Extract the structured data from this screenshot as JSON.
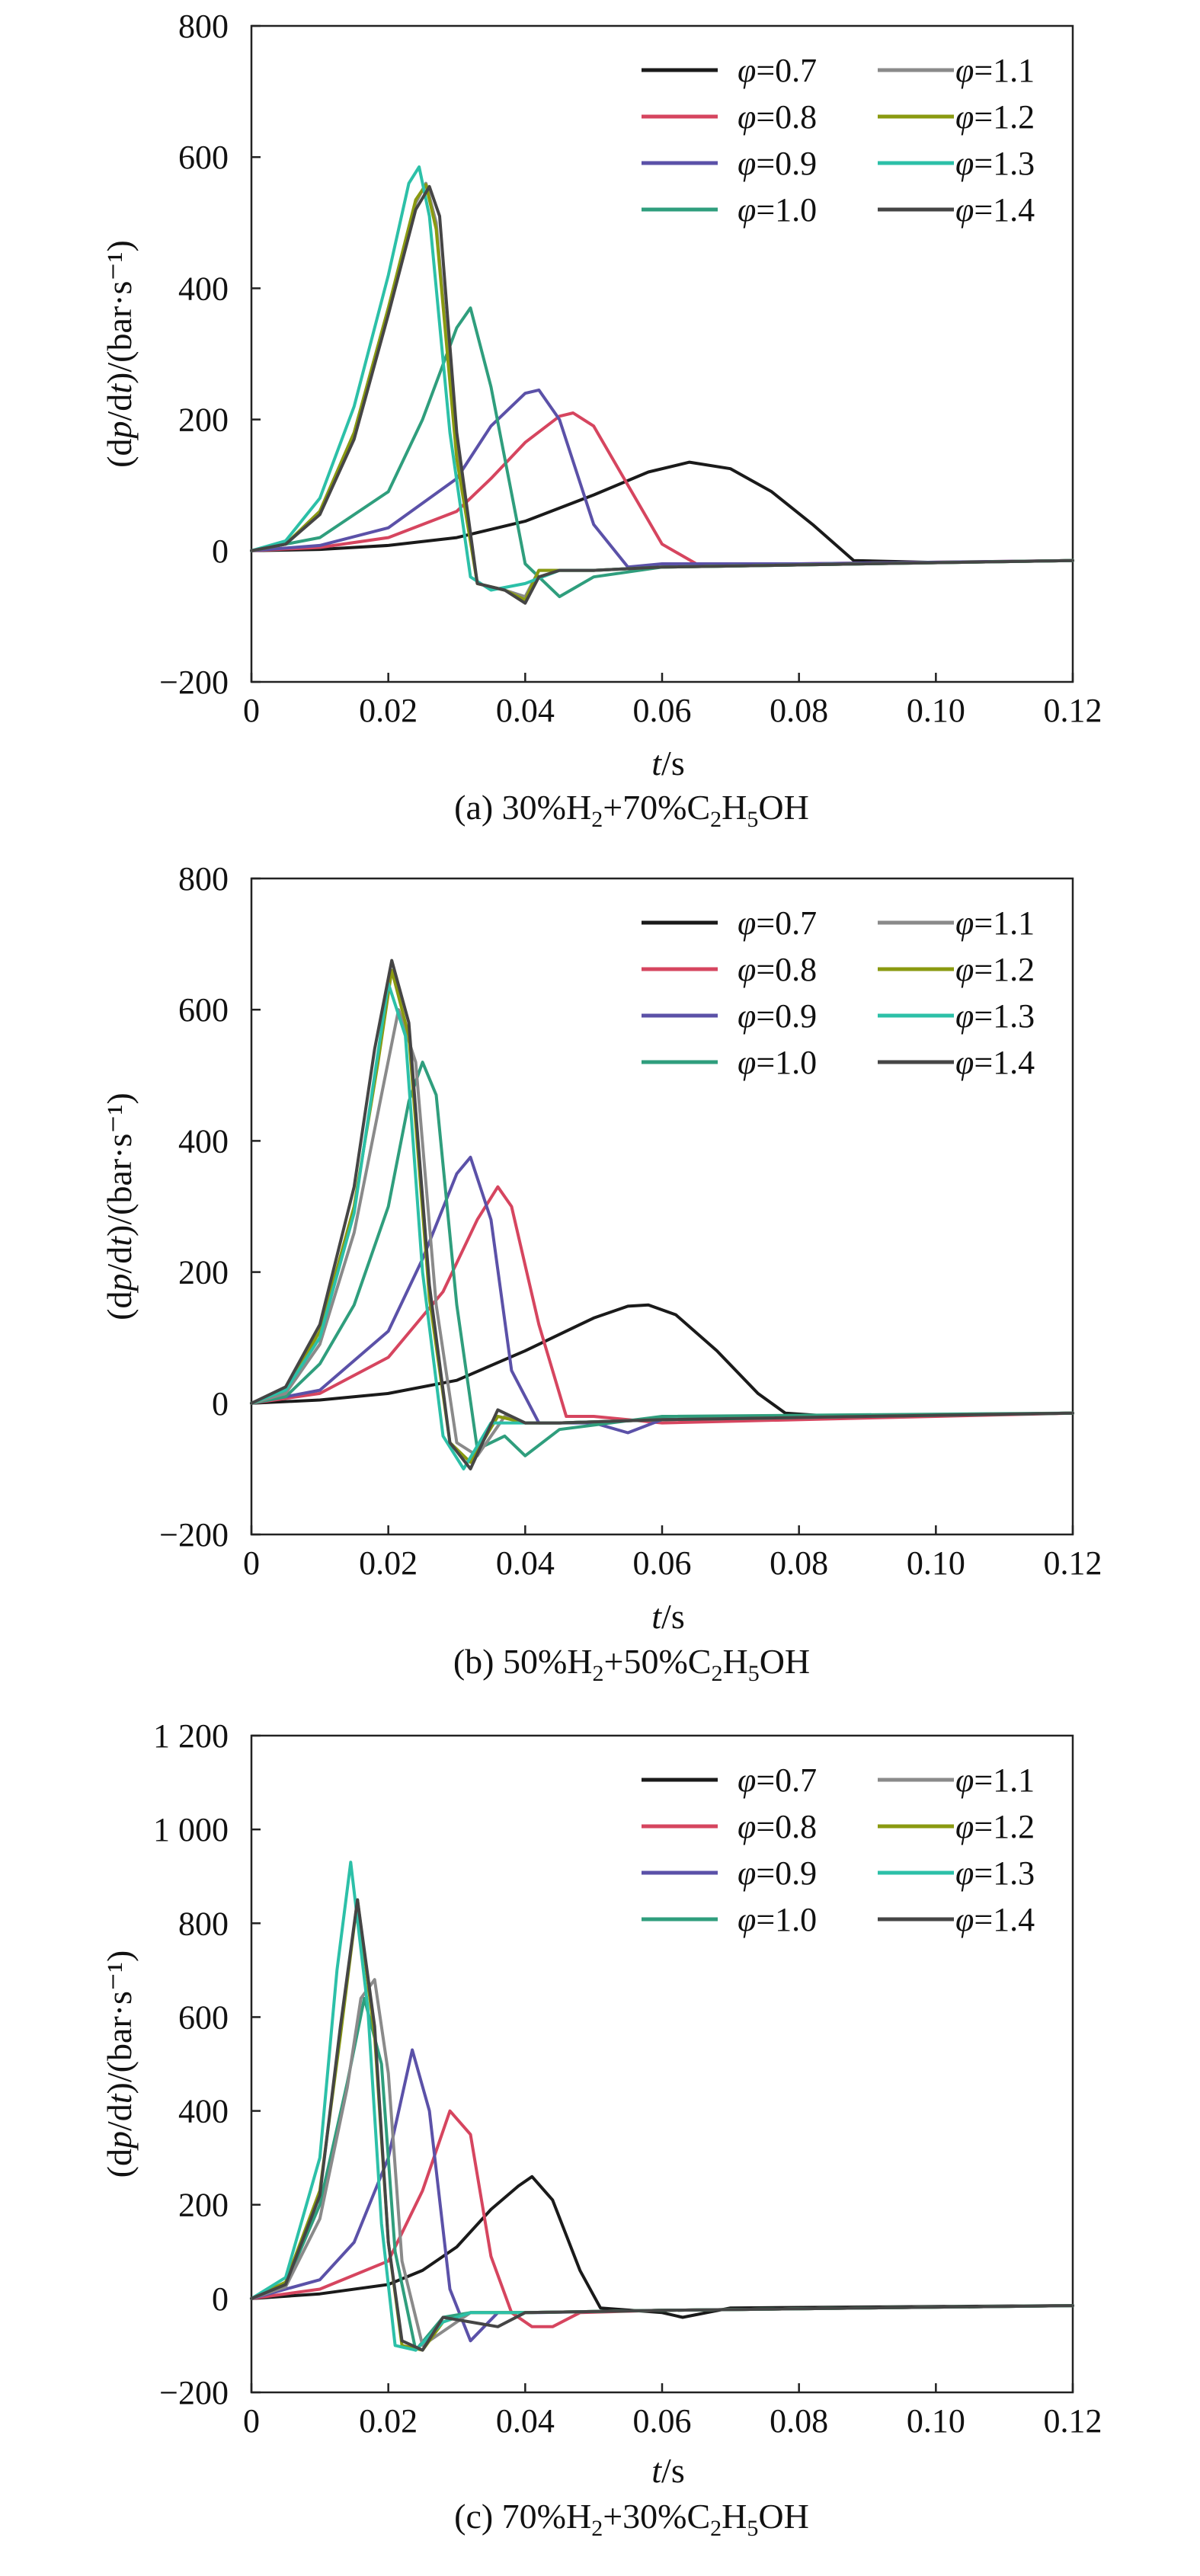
{
  "chart_data": [
    {
      "type": "line",
      "panel_label": "(a)",
      "caption_parts": [
        "(a) 30%H",
        "2",
        "+70%C",
        "2",
        "H",
        "5",
        "OH"
      ],
      "xlabel": "t/s",
      "ylabel": "(dp/dt)/(bar·s⁻¹)",
      "xlim": [
        0,
        0.12
      ],
      "ylim": [
        -200,
        800
      ],
      "xticks": [
        0,
        0.02,
        0.04,
        0.06,
        0.08,
        0.1,
        0.12
      ],
      "xtick_labels": [
        "0",
        "0.02",
        "0.04",
        "0.06",
        "0.08",
        "0.10",
        "0.12"
      ],
      "yticks": [
        -200,
        0,
        200,
        400,
        600,
        800
      ],
      "ytick_labels": [
        "−200",
        "0",
        "200",
        "400",
        "600",
        "800"
      ],
      "grid": false,
      "legend_position": "top-right",
      "series": [
        {
          "name": "φ=0.7",
          "color": "#1a1a1a",
          "x": [
            0,
            0.01,
            0.02,
            0.03,
            0.04,
            0.05,
            0.058,
            0.064,
            0.07,
            0.076,
            0.082,
            0.088,
            0.1,
            0.12
          ],
          "y": [
            0,
            2,
            8,
            20,
            45,
            85,
            120,
            135,
            125,
            90,
            40,
            -15,
            -18,
            -15
          ]
        },
        {
          "name": "φ=0.8",
          "color": "#d6455f",
          "x": [
            0,
            0.01,
            0.02,
            0.03,
            0.035,
            0.04,
            0.045,
            0.047,
            0.05,
            0.055,
            0.06,
            0.065,
            0.08,
            0.12
          ],
          "y": [
            0,
            5,
            20,
            60,
            110,
            165,
            205,
            210,
            190,
            100,
            10,
            -20,
            -20,
            -15
          ]
        },
        {
          "name": "φ=0.9",
          "color": "#5b51a8",
          "x": [
            0,
            0.01,
            0.02,
            0.03,
            0.035,
            0.04,
            0.042,
            0.045,
            0.05,
            0.055,
            0.06,
            0.08,
            0.12
          ],
          "y": [
            0,
            8,
            35,
            110,
            190,
            240,
            245,
            200,
            40,
            -25,
            -20,
            -20,
            -15
          ]
        },
        {
          "name": "φ=1.0",
          "color": "#2f9e7d",
          "x": [
            0,
            0.01,
            0.02,
            0.025,
            0.03,
            0.032,
            0.035,
            0.04,
            0.045,
            0.05,
            0.06,
            0.12
          ],
          "y": [
            0,
            20,
            90,
            200,
            340,
            370,
            250,
            -20,
            -70,
            -40,
            -25,
            -15
          ]
        },
        {
          "name": "φ=1.1",
          "color": "#8a8a8a",
          "x": [
            0,
            0.005,
            0.01,
            0.015,
            0.02,
            0.024,
            0.0255,
            0.027,
            0.03,
            0.033,
            0.037,
            0.04,
            0.042,
            0.045,
            0.05,
            0.06,
            0.12
          ],
          "y": [
            0,
            10,
            60,
            180,
            370,
            530,
            560,
            500,
            150,
            -50,
            -60,
            -70,
            -30,
            -30,
            -30,
            -25,
            -15
          ]
        },
        {
          "name": "φ=1.2",
          "color": "#8a9a10",
          "x": [
            0,
            0.005,
            0.01,
            0.015,
            0.02,
            0.024,
            0.0255,
            0.027,
            0.03,
            0.033,
            0.037,
            0.04,
            0.042,
            0.045,
            0.05,
            0.06,
            0.12
          ],
          "y": [
            0,
            10,
            60,
            180,
            370,
            535,
            558,
            490,
            140,
            -50,
            -60,
            -75,
            -30,
            -30,
            -30,
            -25,
            -15
          ]
        },
        {
          "name": "φ=1.3",
          "color": "#2cc0a8",
          "x": [
            0,
            0.005,
            0.01,
            0.015,
            0.02,
            0.023,
            0.0245,
            0.026,
            0.029,
            0.032,
            0.035,
            0.04,
            0.045,
            0.05,
            0.06,
            0.12
          ],
          "y": [
            0,
            15,
            80,
            220,
            420,
            560,
            585,
            510,
            180,
            -40,
            -60,
            -50,
            -30,
            -30,
            -25,
            -15
          ]
        },
        {
          "name": "φ=1.4",
          "color": "#454545",
          "x": [
            0,
            0.005,
            0.01,
            0.015,
            0.02,
            0.024,
            0.026,
            0.0275,
            0.03,
            0.033,
            0.037,
            0.04,
            0.042,
            0.045,
            0.05,
            0.06,
            0.12
          ],
          "y": [
            0,
            10,
            55,
            170,
            360,
            520,
            555,
            510,
            180,
            -50,
            -60,
            -80,
            -40,
            -30,
            -30,
            -25,
            -15
          ]
        }
      ]
    },
    {
      "type": "line",
      "panel_label": "(b)",
      "caption_parts": [
        "(b) 50%H",
        "2",
        "+50%C",
        "2",
        "H",
        "5",
        "OH"
      ],
      "xlabel": "t/s",
      "ylabel": "(dp/dt)/(bar·s⁻¹)",
      "xlim": [
        0,
        0.12
      ],
      "ylim": [
        -200,
        800
      ],
      "xticks": [
        0,
        0.02,
        0.04,
        0.06,
        0.08,
        0.1,
        0.12
      ],
      "xtick_labels": [
        "0",
        "0.02",
        "0.04",
        "0.06",
        "0.08",
        "0.10",
        "0.12"
      ],
      "yticks": [
        -200,
        0,
        200,
        400,
        600,
        800
      ],
      "ytick_labels": [
        "−200",
        "0",
        "200",
        "400",
        "600",
        "800"
      ],
      "grid": false,
      "legend_position": "top-right",
      "series": [
        {
          "name": "φ=0.7",
          "color": "#1a1a1a",
          "x": [
            0,
            0.01,
            0.02,
            0.03,
            0.04,
            0.05,
            0.055,
            0.058,
            0.062,
            0.068,
            0.074,
            0.078,
            0.085,
            0.12
          ],
          "y": [
            0,
            5,
            15,
            35,
            80,
            130,
            148,
            150,
            135,
            80,
            15,
            -15,
            -20,
            -15
          ]
        },
        {
          "name": "φ=0.8",
          "color": "#d6455f",
          "x": [
            0,
            0.01,
            0.02,
            0.028,
            0.033,
            0.036,
            0.038,
            0.042,
            0.046,
            0.05,
            0.06,
            0.12
          ],
          "y": [
            0,
            15,
            70,
            170,
            280,
            330,
            300,
            120,
            -20,
            -20,
            -30,
            -15
          ]
        },
        {
          "name": "φ=0.9",
          "color": "#5b51a8",
          "x": [
            0,
            0.01,
            0.02,
            0.025,
            0.03,
            0.032,
            0.035,
            0.038,
            0.042,
            0.05,
            0.055,
            0.06,
            0.12
          ],
          "y": [
            0,
            20,
            110,
            220,
            350,
            375,
            280,
            50,
            -30,
            -30,
            -45,
            -25,
            -15
          ]
        },
        {
          "name": "φ=1.0",
          "color": "#2f9e7d",
          "x": [
            0,
            0.005,
            0.01,
            0.015,
            0.02,
            0.023,
            0.025,
            0.027,
            0.03,
            0.033,
            0.037,
            0.04,
            0.045,
            0.06,
            0.12
          ],
          "y": [
            0,
            10,
            60,
            150,
            300,
            460,
            520,
            470,
            150,
            -70,
            -50,
            -80,
            -40,
            -20,
            -15
          ]
        },
        {
          "name": "φ=1.1",
          "color": "#8a8a8a",
          "x": [
            0,
            0.005,
            0.01,
            0.015,
            0.019,
            0.0215,
            0.024,
            0.027,
            0.03,
            0.033,
            0.037,
            0.04,
            0.045,
            0.06,
            0.12
          ],
          "y": [
            0,
            15,
            90,
            260,
            470,
            600,
            520,
            150,
            -60,
            -80,
            -20,
            -30,
            -30,
            -25,
            -15
          ]
        },
        {
          "name": "φ=1.2",
          "color": "#8a9a10",
          "x": [
            0,
            0.005,
            0.01,
            0.015,
            0.0185,
            0.0205,
            0.023,
            0.026,
            0.029,
            0.032,
            0.036,
            0.04,
            0.045,
            0.06,
            0.12
          ],
          "y": [
            0,
            20,
            110,
            300,
            520,
            660,
            560,
            160,
            -60,
            -90,
            -20,
            -30,
            -30,
            -25,
            -15
          ]
        },
        {
          "name": "φ=1.3",
          "color": "#2cc0a8",
          "x": [
            0,
            0.005,
            0.01,
            0.015,
            0.018,
            0.02,
            0.0225,
            0.025,
            0.028,
            0.031,
            0.035,
            0.04,
            0.045,
            0.06,
            0.12
          ],
          "y": [
            0,
            20,
            100,
            290,
            500,
            640,
            560,
            200,
            -50,
            -100,
            -30,
            -30,
            -30,
            -25,
            -15
          ]
        },
        {
          "name": "φ=1.4",
          "color": "#454545",
          "x": [
            0,
            0.005,
            0.01,
            0.015,
            0.018,
            0.0205,
            0.023,
            0.026,
            0.029,
            0.032,
            0.036,
            0.04,
            0.045,
            0.06,
            0.12
          ],
          "y": [
            0,
            25,
            120,
            330,
            540,
            675,
            580,
            180,
            -60,
            -100,
            -10,
            -30,
            -30,
            -25,
            -15
          ]
        }
      ]
    },
    {
      "type": "line",
      "panel_label": "(c)",
      "caption_parts": [
        "(c) 70%H",
        "2",
        "+30%C",
        "2",
        "H",
        "5",
        "OH"
      ],
      "xlabel": "t/s",
      "ylabel": "(dp/dt)/(bar·s⁻¹)",
      "xlim": [
        0,
        0.12
      ],
      "ylim": [
        -200,
        1200
      ],
      "xticks": [
        0,
        0.02,
        0.04,
        0.06,
        0.08,
        0.1,
        0.12
      ],
      "xtick_labels": [
        "0",
        "0.02",
        "0.04",
        "0.06",
        "0.08",
        "0.10",
        "0.12"
      ],
      "yticks": [
        -200,
        0,
        200,
        400,
        600,
        800,
        1000,
        1200
      ],
      "ytick_labels": [
        "−200",
        "0",
        "200",
        "400",
        "600",
        "800",
        "1 000",
        "1 200"
      ],
      "grid": false,
      "legend_position": "top-right",
      "series": [
        {
          "name": "φ=0.7",
          "color": "#1a1a1a",
          "x": [
            0,
            0.01,
            0.02,
            0.025,
            0.03,
            0.035,
            0.039,
            0.041,
            0.044,
            0.048,
            0.051,
            0.06,
            0.063,
            0.07,
            0.12
          ],
          "y": [
            0,
            10,
            30,
            60,
            110,
            190,
            240,
            260,
            210,
            60,
            -20,
            -30,
            -40,
            -20,
            -15
          ]
        },
        {
          "name": "φ=0.8",
          "color": "#d6455f",
          "x": [
            0,
            0.01,
            0.02,
            0.025,
            0.029,
            0.032,
            0.035,
            0.038,
            0.041,
            0.044,
            0.048,
            0.06,
            0.12
          ],
          "y": [
            0,
            20,
            80,
            230,
            400,
            350,
            90,
            -30,
            -60,
            -60,
            -30,
            -25,
            -15
          ]
        },
        {
          "name": "φ=0.9",
          "color": "#5b51a8",
          "x": [
            0,
            0.01,
            0.015,
            0.02,
            0.0235,
            0.026,
            0.029,
            0.032,
            0.036,
            0.042,
            0.06,
            0.12
          ],
          "y": [
            0,
            40,
            120,
            300,
            530,
            400,
            20,
            -90,
            -30,
            -30,
            -25,
            -15
          ]
        },
        {
          "name": "φ=1.0",
          "color": "#2f9e7d",
          "x": [
            0,
            0.005,
            0.01,
            0.014,
            0.0165,
            0.019,
            0.021,
            0.024,
            0.028,
            0.032,
            0.04,
            0.06,
            0.12
          ],
          "y": [
            0,
            30,
            200,
            460,
            640,
            500,
            100,
            -110,
            -40,
            -30,
            -30,
            -25,
            -15
          ]
        },
        {
          "name": "φ=1.1",
          "color": "#8a8a8a",
          "x": [
            0,
            0.005,
            0.01,
            0.014,
            0.016,
            0.018,
            0.02,
            0.022,
            0.025,
            0.028,
            0.032,
            0.04,
            0.06,
            0.12
          ],
          "y": [
            0,
            25,
            170,
            450,
            640,
            680,
            480,
            80,
            -100,
            -70,
            -30,
            -30,
            -25,
            -15
          ]
        },
        {
          "name": "φ=1.2",
          "color": "#8a9a10",
          "x": [
            0,
            0.005,
            0.01,
            0.013,
            0.0155,
            0.018,
            0.02,
            0.022,
            0.025,
            0.028,
            0.032,
            0.04,
            0.06,
            0.12
          ],
          "y": [
            0,
            35,
            230,
            560,
            850,
            560,
            120,
            -100,
            -110,
            -50,
            -30,
            -30,
            -25,
            -15
          ]
        },
        {
          "name": "φ=1.3",
          "color": "#2cc0a8",
          "x": [
            0,
            0.005,
            0.01,
            0.0125,
            0.0145,
            0.017,
            0.019,
            0.021,
            0.024,
            0.028,
            0.032,
            0.04,
            0.06,
            0.12
          ],
          "y": [
            0,
            45,
            300,
            700,
            930,
            620,
            160,
            -100,
            -110,
            -50,
            -30,
            -30,
            -25,
            -15
          ]
        },
        {
          "name": "φ=1.4",
          "color": "#454545",
          "x": [
            0,
            0.005,
            0.01,
            0.013,
            0.0155,
            0.018,
            0.02,
            0.022,
            0.025,
            0.028,
            0.032,
            0.036,
            0.04,
            0.06,
            0.12
          ],
          "y": [
            0,
            30,
            220,
            580,
            850,
            580,
            120,
            -90,
            -110,
            -40,
            -50,
            -60,
            -30,
            -25,
            -15
          ]
        }
      ]
    }
  ]
}
